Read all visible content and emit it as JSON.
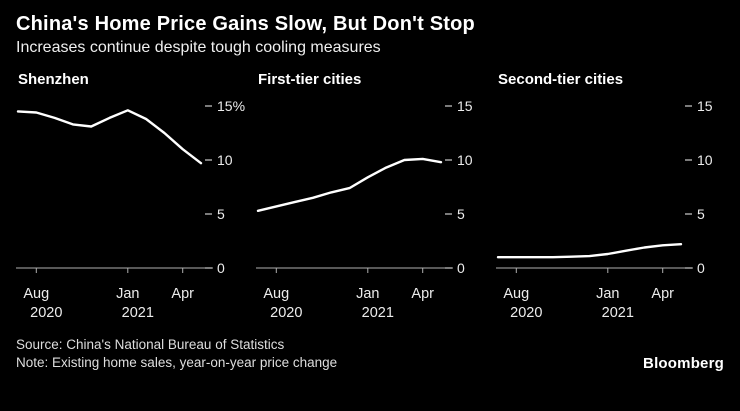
{
  "header": {
    "title": "China's Home Price Gains Slow, But Don't Stop",
    "subtitle": "Increases continue despite tough cooling measures"
  },
  "footer": {
    "source": "Source: China's National Bureau of Statistics",
    "note": "Note: Existing home sales, year-on-year price change",
    "brand": "Bloomberg"
  },
  "colors": {
    "background": "#000000",
    "line": "#ffffff",
    "axis": "#b0b0b0",
    "text": "#ececec"
  },
  "chart_data": {
    "type": "line",
    "x": [
      "Jul 2020",
      "Aug 2020",
      "Sep 2020",
      "Oct 2020",
      "Nov 2020",
      "Dec 2020",
      "Jan 2021",
      "Feb 2021",
      "Mar 2021",
      "Apr 2021",
      "May 2021"
    ],
    "ylim": [
      0,
      15
    ],
    "yticks": [
      0,
      5,
      10,
      15
    ],
    "xtick_labels": [
      "Aug",
      "Jan",
      "Apr"
    ],
    "xtick_positions": [
      1,
      6,
      9
    ],
    "year_labels": [
      "2020",
      "2021"
    ],
    "legend": "none",
    "grid": "off",
    "panels": [
      {
        "title": "Shenzhen",
        "ytick_labels": [
          "15%",
          "10",
          "5",
          "0"
        ],
        "values": [
          14.5,
          14.4,
          13.9,
          13.3,
          13.1,
          13.9,
          14.6,
          13.8,
          12.5,
          11.0,
          9.7
        ]
      },
      {
        "title": "First-tier cities",
        "ytick_labels": [
          "15",
          "10",
          "5",
          "0"
        ],
        "values": [
          5.3,
          5.7,
          6.1,
          6.5,
          7.0,
          7.4,
          8.4,
          9.3,
          10.0,
          10.1,
          9.8
        ]
      },
      {
        "title": "Second-tier cities",
        "ytick_labels": [
          "15",
          "10",
          "5",
          "0"
        ],
        "values": [
          1.0,
          1.0,
          1.0,
          1.0,
          1.05,
          1.1,
          1.3,
          1.6,
          1.9,
          2.1,
          2.2
        ]
      }
    ]
  }
}
